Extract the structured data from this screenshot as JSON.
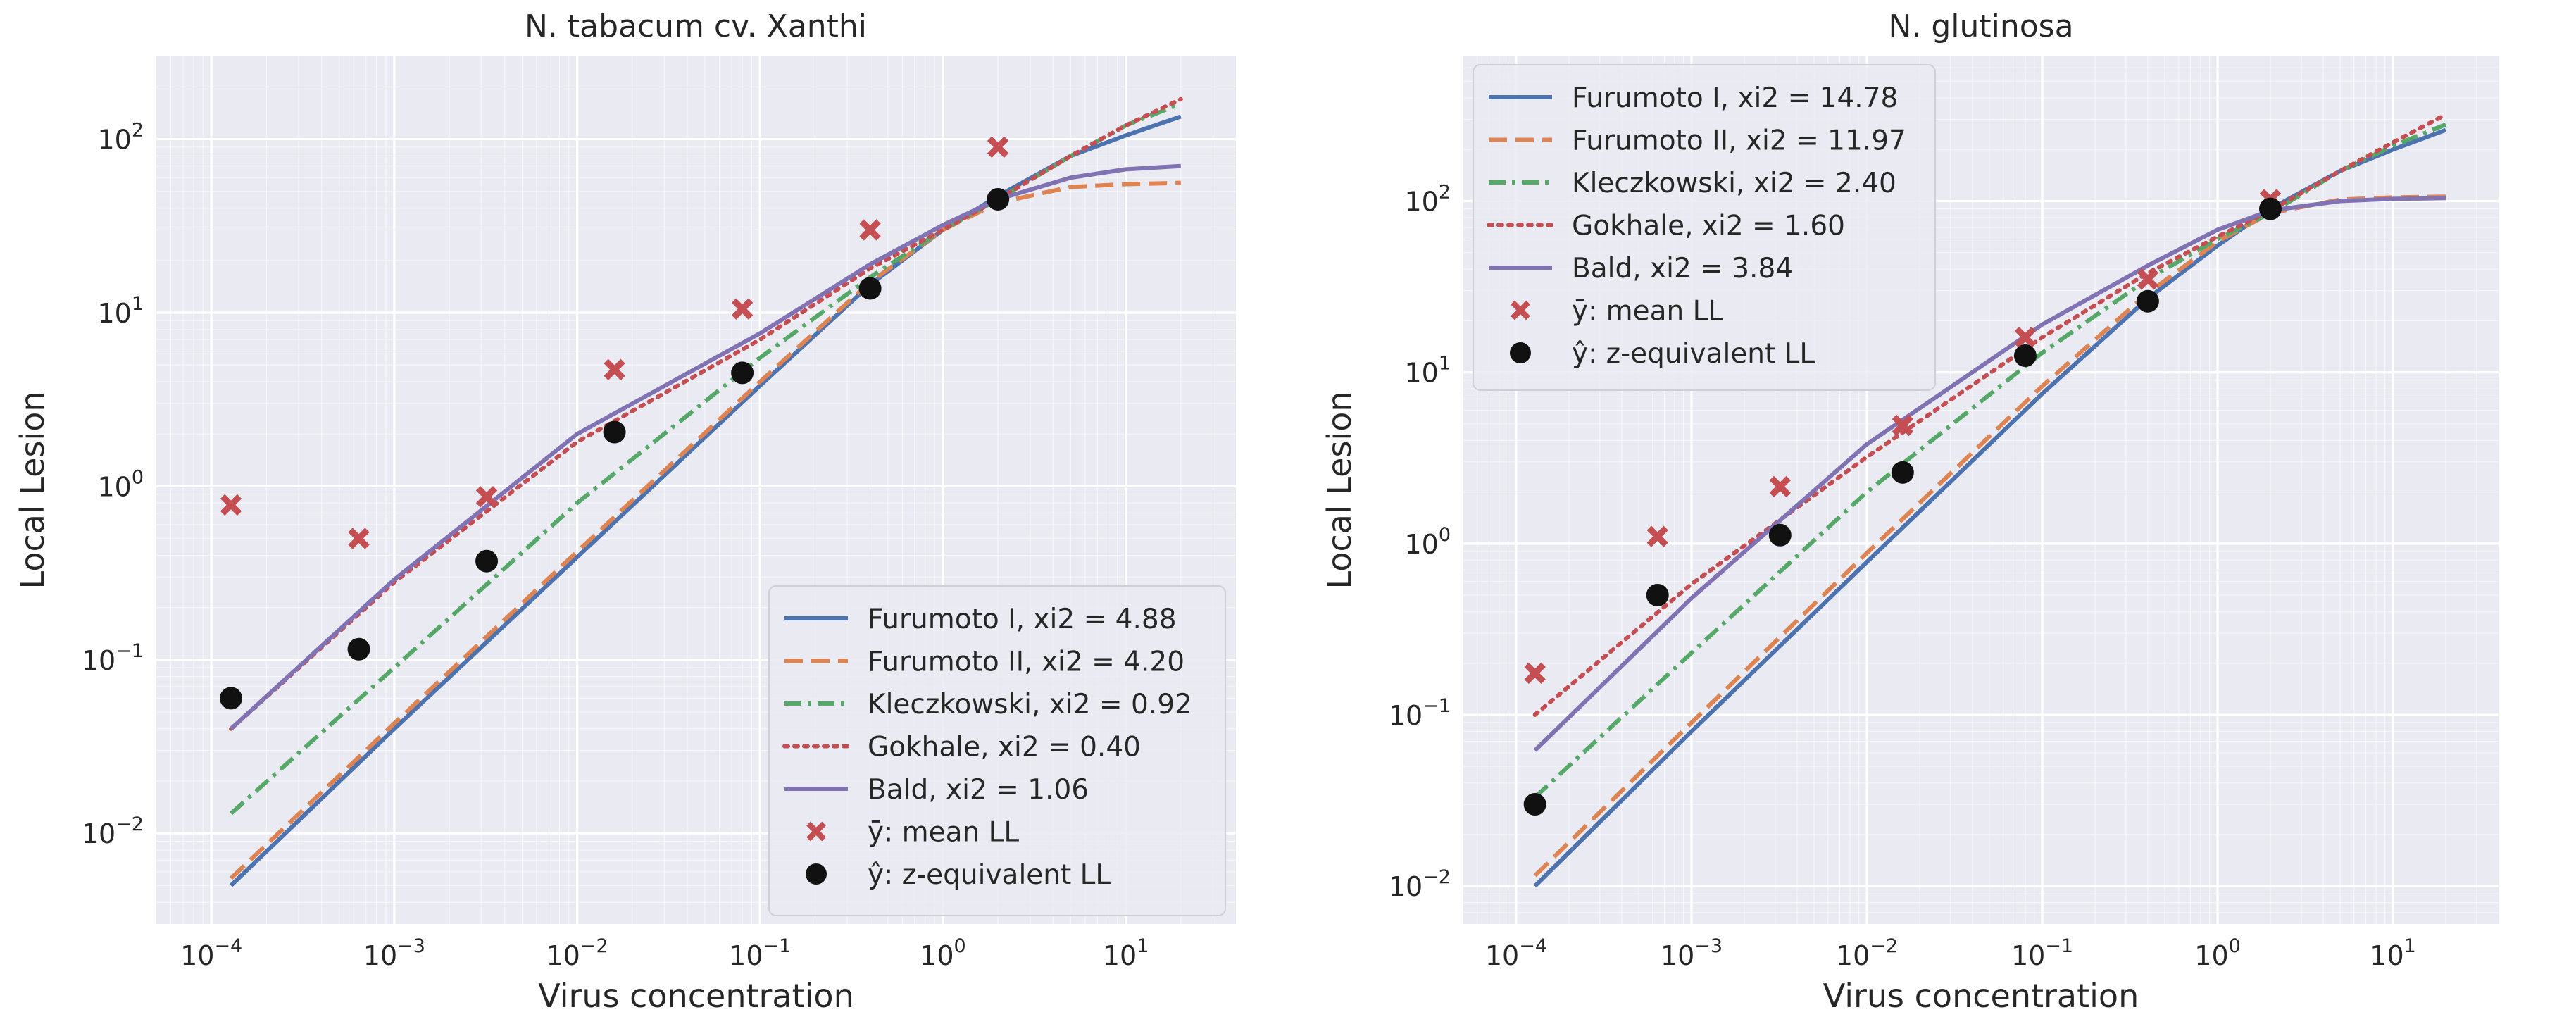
{
  "colors": {
    "background": "#eaeaf2",
    "grid": "#ffffff",
    "furumoto1": "#4c72b0",
    "furumoto2": "#dd8452",
    "kleczkowski": "#55a868",
    "gokhale": "#c44e52",
    "bald": "#8172b3",
    "mean_marker": "#c44e52",
    "z_marker": "#111111"
  },
  "chart_data": [
    {
      "type": "line",
      "title": "N. tabacum cv. Xanthi",
      "xlabel": "Virus concentration",
      "ylabel": "Local Lesion",
      "xscale": "log",
      "yscale": "log",
      "xlim": [
        5e-05,
        40
      ],
      "ylim": [
        0.003,
        300
      ],
      "xticks": [
        {
          "value": 0.0001,
          "base": "10",
          "exp": "−4"
        },
        {
          "value": 0.001,
          "base": "10",
          "exp": "−3"
        },
        {
          "value": 0.01,
          "base": "10",
          "exp": "−2"
        },
        {
          "value": 0.1,
          "base": "10",
          "exp": "−1"
        },
        {
          "value": 1,
          "base": "10",
          "exp": "0"
        },
        {
          "value": 10,
          "base": "10",
          "exp": "1"
        }
      ],
      "yticks": [
        {
          "value": 0.01,
          "base": "10",
          "exp": "−2"
        },
        {
          "value": 0.1,
          "base": "10",
          "exp": "−1"
        },
        {
          "value": 1,
          "base": "10",
          "exp": "0"
        },
        {
          "value": 10,
          "base": "10",
          "exp": "1"
        },
        {
          "value": 100,
          "base": "10",
          "exp": "2"
        }
      ],
      "grid": true,
      "legend_position": "lower-right",
      "series": [
        {
          "name": "Furumoto I, xi2 = 4.88",
          "style": "solid",
          "color_key": "furumoto1",
          "x": [
            0.000128,
            0.001,
            0.01,
            0.1,
            0.4,
            1,
            2,
            5,
            10,
            20
          ],
          "y": [
            0.005,
            0.04,
            0.39,
            3.8,
            14.5,
            30,
            47,
            80,
            105,
            135
          ]
        },
        {
          "name": "Furumoto II, xi2 = 4.20",
          "style": "dashed",
          "color_key": "furumoto2",
          "x": [
            0.000128,
            0.001,
            0.01,
            0.1,
            0.4,
            1,
            2,
            5,
            10,
            20
          ],
          "y": [
            0.0055,
            0.043,
            0.42,
            4.0,
            15,
            30,
            43,
            53,
            55,
            56
          ]
        },
        {
          "name": "Kleczkowski, xi2 = 0.92",
          "style": "dashdot",
          "color_key": "kleczkowski",
          "x": [
            0.000128,
            0.001,
            0.01,
            0.1,
            0.4,
            1,
            2,
            5,
            10,
            20
          ],
          "y": [
            0.013,
            0.09,
            0.8,
            5.5,
            16,
            30,
            45,
            80,
            120,
            160
          ]
        },
        {
          "name": "Gokhale, xi2 = 0.40",
          "style": "dotted",
          "color_key": "gokhale",
          "x": [
            0.000128,
            0.001,
            0.01,
            0.1,
            0.4,
            1,
            2,
            5,
            10,
            20
          ],
          "y": [
            0.04,
            0.28,
            1.8,
            7.0,
            18,
            30,
            45,
            80,
            120,
            170
          ]
        },
        {
          "name": "Bald, xi2 = 1.06",
          "style": "solid",
          "color_key": "bald",
          "x": [
            0.000128,
            0.001,
            0.01,
            0.1,
            0.4,
            1,
            2,
            5,
            10,
            20
          ],
          "y": [
            0.04,
            0.29,
            2.0,
            7.6,
            19,
            32,
            45,
            60,
            67,
            70
          ]
        }
      ],
      "points": [
        {
          "name": "ȳ: mean LL",
          "marker": "x",
          "color_key": "mean_marker",
          "x": [
            0.000128,
            0.00064,
            0.0032,
            0.016,
            0.08,
            0.4,
            2
          ],
          "y": [
            0.78,
            0.5,
            0.87,
            4.7,
            10.5,
            30,
            90
          ]
        },
        {
          "name": "ŷ: z-equivalent LL",
          "marker": "circle",
          "color_key": "z_marker",
          "x": [
            0.000128,
            0.00064,
            0.0032,
            0.016,
            0.08,
            0.4,
            2
          ],
          "y": [
            0.06,
            0.115,
            0.37,
            2.05,
            4.5,
            13.8,
            45
          ]
        }
      ]
    },
    {
      "type": "line",
      "title": "N. glutinosa",
      "xlabel": "Virus concentration",
      "ylabel": "Local Lesion",
      "xscale": "log",
      "yscale": "log",
      "xlim": [
        5e-05,
        40
      ],
      "ylim": [
        0.006,
        700
      ],
      "xticks": [
        {
          "value": 0.0001,
          "base": "10",
          "exp": "−4"
        },
        {
          "value": 0.001,
          "base": "10",
          "exp": "−3"
        },
        {
          "value": 0.01,
          "base": "10",
          "exp": "−2"
        },
        {
          "value": 0.1,
          "base": "10",
          "exp": "−1"
        },
        {
          "value": 1,
          "base": "10",
          "exp": "0"
        },
        {
          "value": 10,
          "base": "10",
          "exp": "1"
        }
      ],
      "yticks": [
        {
          "value": 0.01,
          "base": "10",
          "exp": "−2"
        },
        {
          "value": 0.1,
          "base": "10",
          "exp": "−1"
        },
        {
          "value": 1,
          "base": "10",
          "exp": "0"
        },
        {
          "value": 10,
          "base": "10",
          "exp": "1"
        },
        {
          "value": 100,
          "base": "10",
          "exp": "2"
        }
      ],
      "grid": true,
      "legend_position": "upper-left",
      "series": [
        {
          "name": "Furumoto I, xi2 = 14.78",
          "style": "solid",
          "color_key": "furumoto1",
          "x": [
            0.000128,
            0.001,
            0.01,
            0.1,
            0.4,
            1,
            2,
            5,
            10,
            20
          ],
          "y": [
            0.01,
            0.08,
            0.78,
            7.5,
            27,
            55,
            90,
            150,
            200,
            260
          ]
        },
        {
          "name": "Furumoto II, xi2 = 11.97",
          "style": "dashed",
          "color_key": "furumoto2",
          "x": [
            0.000128,
            0.001,
            0.01,
            0.1,
            0.4,
            1,
            2,
            5,
            10,
            20
          ],
          "y": [
            0.0115,
            0.09,
            0.88,
            8.3,
            29,
            58,
            85,
            102,
            105,
            106
          ]
        },
        {
          "name": "Kleczkowski, xi2 = 2.40",
          "style": "dashdot",
          "color_key": "kleczkowski",
          "x": [
            0.000128,
            0.001,
            0.01,
            0.1,
            0.4,
            1,
            2,
            5,
            10,
            20
          ],
          "y": [
            0.033,
            0.23,
            2.0,
            13,
            35,
            60,
            85,
            150,
            210,
            280
          ]
        },
        {
          "name": "Gokhale, xi2 = 1.60",
          "style": "dotted",
          "color_key": "gokhale",
          "x": [
            0.000128,
            0.001,
            0.01,
            0.1,
            0.4,
            1,
            2,
            5,
            10,
            20
          ],
          "y": [
            0.1,
            0.58,
            3.2,
            16,
            38,
            62,
            88,
            150,
            220,
            320
          ]
        },
        {
          "name": "Bald, xi2 = 3.84",
          "style": "solid",
          "color_key": "bald",
          "x": [
            0.000128,
            0.001,
            0.01,
            0.1,
            0.4,
            1,
            2,
            5,
            10,
            20
          ],
          "y": [
            0.062,
            0.48,
            3.8,
            19,
            42,
            68,
            88,
            100,
            103,
            104
          ]
        }
      ],
      "points": [
        {
          "name": "ȳ: mean LL",
          "marker": "x",
          "color_key": "mean_marker",
          "x": [
            0.000128,
            0.00064,
            0.0032,
            0.016,
            0.08,
            0.4,
            2
          ],
          "y": [
            0.175,
            1.1,
            2.15,
            4.9,
            16,
            35,
            102
          ]
        },
        {
          "name": "ŷ: z-equivalent LL",
          "marker": "circle",
          "color_key": "z_marker",
          "x": [
            0.000128,
            0.00064,
            0.0032,
            0.016,
            0.08,
            0.4,
            2
          ],
          "y": [
            0.03,
            0.5,
            1.12,
            2.6,
            12.5,
            26,
            90
          ]
        }
      ]
    }
  ]
}
